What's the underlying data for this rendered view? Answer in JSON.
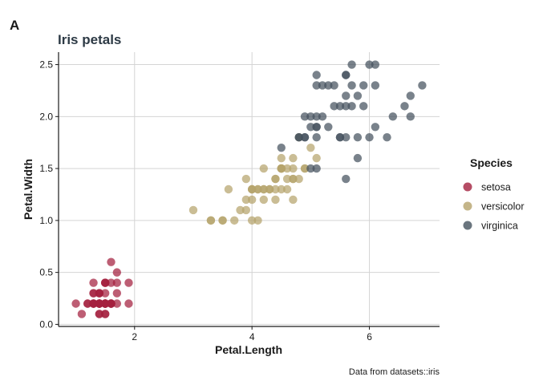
{
  "panel_tag": "A",
  "caption": "Data from datasets::iris",
  "chart_data": {
    "type": "scatter",
    "title": "Iris petals",
    "xlabel": "Petal.Length",
    "ylabel": "Petal.Width",
    "xlim": [
      0.705,
      7.195
    ],
    "ylim": [
      -0.02,
      2.62
    ],
    "x_ticks": [
      2,
      4,
      6
    ],
    "y_ticks": [
      0.0,
      0.5,
      1.0,
      1.5,
      2.0,
      2.5
    ],
    "x_tick_labels": [
      "2",
      "4",
      "6"
    ],
    "y_tick_labels": [
      "0.0",
      "0.5",
      "1.0",
      "1.5",
      "2.0",
      "2.5"
    ],
    "grid": true,
    "legend_title": "Species",
    "legend_position": "right",
    "series": [
      {
        "name": "setosa",
        "color": "#a3203f",
        "points": [
          [
            1.4,
            0.2
          ],
          [
            1.4,
            0.2
          ],
          [
            1.3,
            0.2
          ],
          [
            1.5,
            0.2
          ],
          [
            1.4,
            0.2
          ],
          [
            1.7,
            0.4
          ],
          [
            1.4,
            0.3
          ],
          [
            1.5,
            0.2
          ],
          [
            1.4,
            0.2
          ],
          [
            1.5,
            0.1
          ],
          [
            1.5,
            0.2
          ],
          [
            1.6,
            0.2
          ],
          [
            1.4,
            0.1
          ],
          [
            1.1,
            0.1
          ],
          [
            1.2,
            0.2
          ],
          [
            1.5,
            0.4
          ],
          [
            1.3,
            0.4
          ],
          [
            1.4,
            0.3
          ],
          [
            1.7,
            0.3
          ],
          [
            1.5,
            0.3
          ],
          [
            1.7,
            0.2
          ],
          [
            1.5,
            0.4
          ],
          [
            1.0,
            0.2
          ],
          [
            1.7,
            0.5
          ],
          [
            1.9,
            0.2
          ],
          [
            1.6,
            0.2
          ],
          [
            1.6,
            0.4
          ],
          [
            1.5,
            0.2
          ],
          [
            1.4,
            0.2
          ],
          [
            1.6,
            0.2
          ],
          [
            1.6,
            0.2
          ],
          [
            1.5,
            0.4
          ],
          [
            1.5,
            0.1
          ],
          [
            1.4,
            0.2
          ],
          [
            1.5,
            0.2
          ],
          [
            1.2,
            0.2
          ],
          [
            1.3,
            0.2
          ],
          [
            1.4,
            0.1
          ],
          [
            1.3,
            0.2
          ],
          [
            1.5,
            0.2
          ],
          [
            1.3,
            0.3
          ],
          [
            1.3,
            0.3
          ],
          [
            1.3,
            0.2
          ],
          [
            1.6,
            0.6
          ],
          [
            1.9,
            0.4
          ],
          [
            1.4,
            0.3
          ],
          [
            1.6,
            0.2
          ],
          [
            1.4,
            0.2
          ],
          [
            1.5,
            0.2
          ],
          [
            1.4,
            0.2
          ]
        ]
      },
      {
        "name": "versicolor",
        "color": "#b5a36c",
        "points": [
          [
            4.7,
            1.4
          ],
          [
            4.5,
            1.5
          ],
          [
            4.9,
            1.5
          ],
          [
            4.0,
            1.3
          ],
          [
            4.6,
            1.5
          ],
          [
            4.5,
            1.3
          ],
          [
            4.7,
            1.6
          ],
          [
            3.3,
            1.0
          ],
          [
            4.6,
            1.3
          ],
          [
            3.9,
            1.4
          ],
          [
            3.5,
            1.0
          ],
          [
            4.2,
            1.5
          ],
          [
            4.0,
            1.0
          ],
          [
            4.7,
            1.4
          ],
          [
            3.6,
            1.3
          ],
          [
            4.4,
            1.4
          ],
          [
            4.5,
            1.5
          ],
          [
            4.1,
            1.0
          ],
          [
            4.5,
            1.5
          ],
          [
            3.9,
            1.1
          ],
          [
            4.8,
            1.8
          ],
          [
            4.0,
            1.3
          ],
          [
            4.9,
            1.5
          ],
          [
            4.7,
            1.2
          ],
          [
            4.3,
            1.3
          ],
          [
            4.4,
            1.4
          ],
          [
            4.8,
            1.4
          ],
          [
            5.0,
            1.7
          ],
          [
            4.5,
            1.5
          ],
          [
            3.5,
            1.0
          ],
          [
            3.8,
            1.1
          ],
          [
            3.7,
            1.0
          ],
          [
            3.9,
            1.2
          ],
          [
            5.1,
            1.6
          ],
          [
            4.5,
            1.5
          ],
          [
            4.5,
            1.6
          ],
          [
            4.7,
            1.5
          ],
          [
            4.4,
            1.3
          ],
          [
            4.1,
            1.3
          ],
          [
            4.0,
            1.3
          ],
          [
            4.4,
            1.2
          ],
          [
            4.6,
            1.4
          ],
          [
            4.0,
            1.2
          ],
          [
            3.3,
            1.0
          ],
          [
            4.2,
            1.3
          ],
          [
            4.2,
            1.2
          ],
          [
            4.2,
            1.3
          ],
          [
            4.3,
            1.3
          ],
          [
            3.0,
            1.1
          ],
          [
            4.1,
            1.3
          ]
        ]
      },
      {
        "name": "virginica",
        "color": "#45525e",
        "points": [
          [
            6.0,
            2.5
          ],
          [
            5.1,
            1.9
          ],
          [
            5.9,
            2.1
          ],
          [
            5.6,
            1.8
          ],
          [
            5.8,
            2.2
          ],
          [
            6.6,
            2.1
          ],
          [
            4.5,
            1.7
          ],
          [
            6.3,
            1.8
          ],
          [
            5.8,
            1.8
          ],
          [
            6.1,
            2.5
          ],
          [
            5.1,
            2.0
          ],
          [
            5.3,
            1.9
          ],
          [
            5.5,
            2.1
          ],
          [
            5.0,
            2.0
          ],
          [
            5.1,
            2.4
          ],
          [
            5.3,
            2.3
          ],
          [
            5.5,
            1.8
          ],
          [
            6.7,
            2.2
          ],
          [
            6.9,
            2.3
          ],
          [
            5.0,
            1.5
          ],
          [
            5.7,
            2.3
          ],
          [
            4.9,
            2.0
          ],
          [
            6.7,
            2.0
          ],
          [
            4.9,
            1.8
          ],
          [
            5.7,
            2.1
          ],
          [
            6.0,
            1.8
          ],
          [
            4.8,
            1.8
          ],
          [
            4.9,
            1.8
          ],
          [
            5.6,
            2.1
          ],
          [
            5.8,
            1.6
          ],
          [
            6.1,
            1.9
          ],
          [
            6.4,
            2.0
          ],
          [
            5.6,
            2.2
          ],
          [
            5.1,
            1.5
          ],
          [
            5.6,
            1.4
          ],
          [
            6.1,
            2.3
          ],
          [
            5.6,
            2.4
          ],
          [
            5.5,
            1.8
          ],
          [
            4.8,
            1.8
          ],
          [
            5.4,
            2.1
          ],
          [
            5.6,
            2.4
          ],
          [
            5.1,
            2.3
          ],
          [
            5.1,
            1.9
          ],
          [
            5.9,
            2.3
          ],
          [
            5.7,
            2.5
          ],
          [
            5.2,
            2.3
          ],
          [
            5.0,
            1.9
          ],
          [
            5.2,
            2.0
          ],
          [
            5.4,
            2.3
          ],
          [
            5.1,
            1.8
          ]
        ]
      }
    ]
  }
}
